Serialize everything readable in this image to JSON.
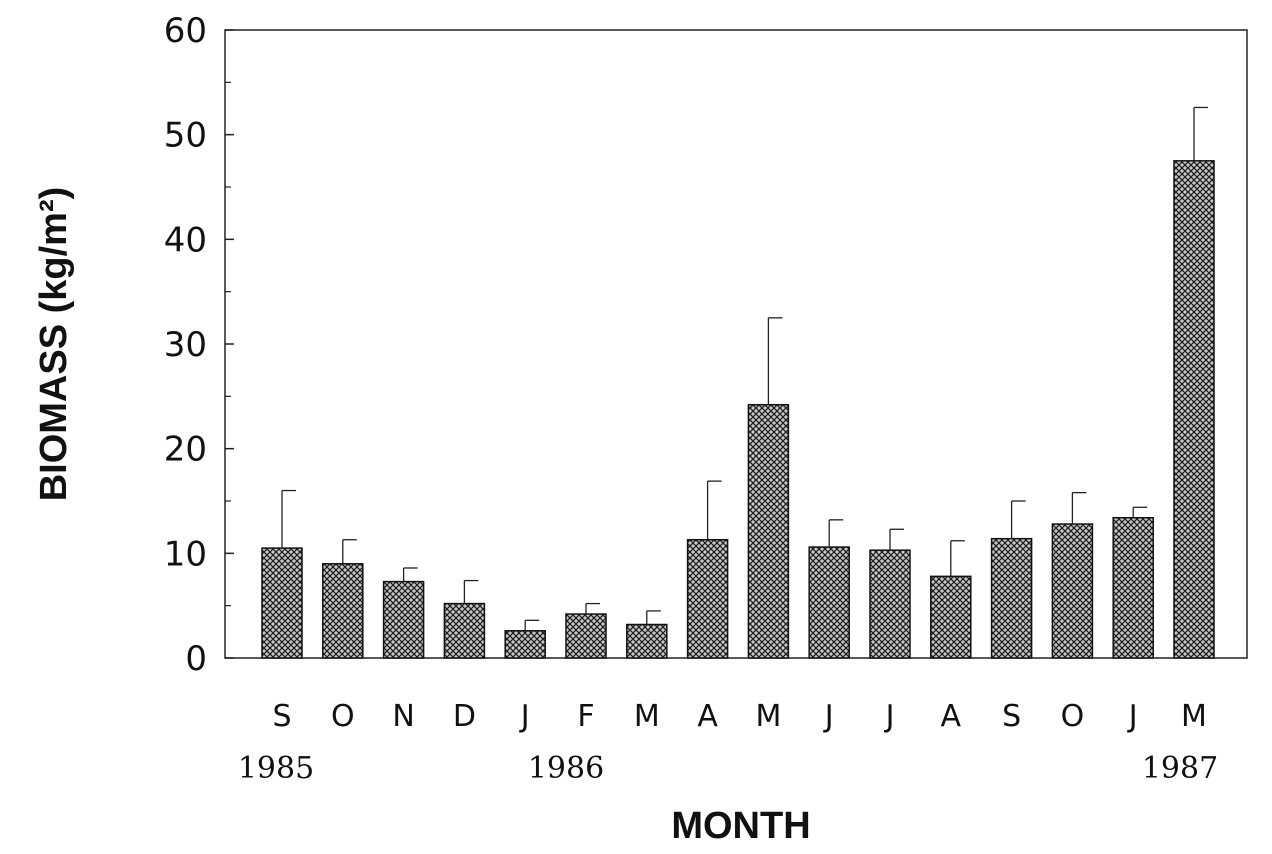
{
  "chart_data": {
    "type": "bar",
    "xlabel": "MONTH",
    "ylabel": "BIOMASS  (kg/m²)",
    "ylim": [
      0,
      60
    ],
    "yticks": [
      "0",
      "10",
      "20",
      "30",
      "40",
      "50",
      "60"
    ],
    "grid": false,
    "categories": [
      "S",
      "O",
      "N",
      "D",
      "J",
      "F",
      "M",
      "A",
      "M",
      "J",
      "J",
      "A",
      "S",
      "O",
      "J",
      "M"
    ],
    "values": [
      10.5,
      9.0,
      7.3,
      5.2,
      2.6,
      4.2,
      3.2,
      11.3,
      24.2,
      10.6,
      10.3,
      7.8,
      11.4,
      12.8,
      13.4,
      47.5
    ],
    "error_upper": [
      16.0,
      11.3,
      8.6,
      7.4,
      3.6,
      5.2,
      4.5,
      16.9,
      32.5,
      13.2,
      12.3,
      11.2,
      15.0,
      15.8,
      14.4,
      52.6
    ],
    "year_labels": [
      "1985",
      "1986",
      "1987"
    ],
    "bar_color": "#8c8c8c"
  }
}
